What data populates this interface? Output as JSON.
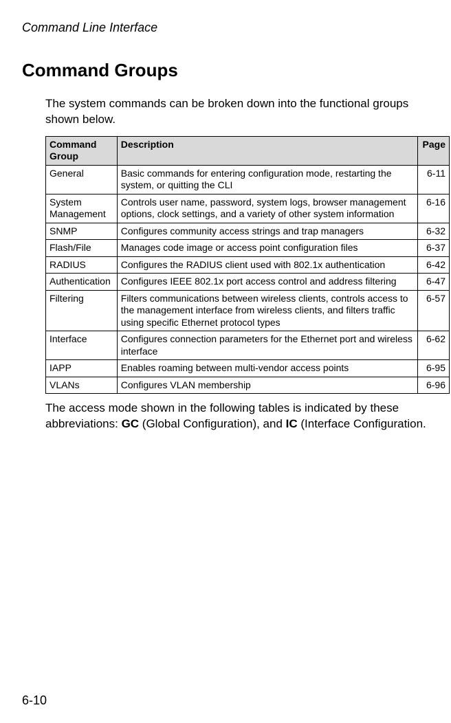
{
  "header": "Command Line Interface",
  "title": "Command Groups",
  "intro": "The system commands can be broken down into the functional groups shown below.",
  "table": {
    "headers": {
      "group": "Command Group",
      "desc": "Description",
      "page": "Page"
    },
    "rows": [
      {
        "group": "General",
        "desc": "Basic commands for entering configuration mode, restarting the system, or quitting the CLI",
        "page": "6-11"
      },
      {
        "group": "System Management",
        "desc": "Controls user name, password, system logs, browser management options, clock settings, and a variety of other system information",
        "page": "6-16"
      },
      {
        "group": "SNMP",
        "desc": "Configures community access strings and trap managers",
        "page": "6-32"
      },
      {
        "group": "Flash/File",
        "desc": "Manages code image or access point configuration files",
        "page": "6-37"
      },
      {
        "group": "RADIUS",
        "desc": "Configures the RADIUS client used with 802.1x authentication",
        "page": "6-42"
      },
      {
        "group": "Authentication",
        "desc": "Configures IEEE 802.1x port access control and address filtering",
        "page": "6-47"
      },
      {
        "group": "Filtering",
        "desc": "Filters communications between wireless clients, controls access to the management interface from wireless clients, and filters traffic using specific Ethernet protocol types",
        "page": "6-57"
      },
      {
        "group": "Interface",
        "desc": "Configures connection parameters for the Ethernet port and wireless interface",
        "page": "6-62"
      },
      {
        "group": "IAPP",
        "desc": "Enables roaming between multi-vendor access points",
        "page": "6-95"
      },
      {
        "group": "VLANs",
        "desc": "Configures VLAN membership",
        "page": "6-96"
      }
    ]
  },
  "outro_pre": "The access mode shown in the following tables is indicated by these abbreviations: ",
  "outro_gc_b": "GC",
  "outro_gc": " (Global Configuration), and ",
  "outro_ic_b": "IC",
  "outro_ic": " (Interface Configuration.",
  "page_number": "6-10"
}
